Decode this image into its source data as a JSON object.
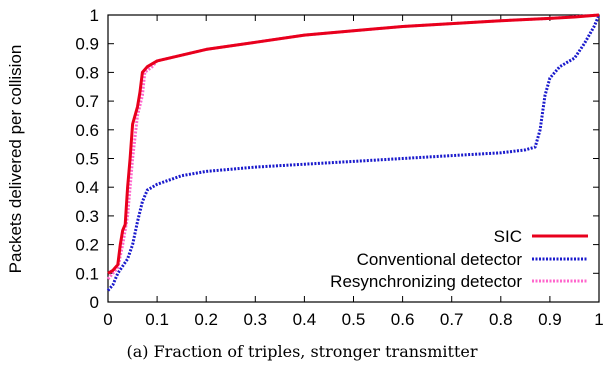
{
  "caption": "(a) Fraction of triples, stronger transmitter",
  "chart_data": {
    "type": "line",
    "title": "",
    "xlabel": "",
    "ylabel": "Packets delivered per collision",
    "xlim": [
      0,
      1
    ],
    "ylim": [
      0,
      1
    ],
    "x_ticks": [
      "0",
      "0.1",
      "0.2",
      "0.3",
      "0.4",
      "0.5",
      "0.6",
      "0.7",
      "0.8",
      "0.9",
      "1"
    ],
    "y_ticks": [
      "0",
      "0.1",
      "0.2",
      "0.3",
      "0.4",
      "0.5",
      "0.6",
      "0.7",
      "0.8",
      "0.9",
      "1"
    ],
    "grid": false,
    "legend_position": "bottom-right",
    "series": [
      {
        "name": "SIC",
        "color": "#e8001c",
        "style": "solid",
        "points": [
          [
            0,
            0.1
          ],
          [
            0.01,
            0.11
          ],
          [
            0.02,
            0.13
          ],
          [
            0.025,
            0.2
          ],
          [
            0.03,
            0.25
          ],
          [
            0.035,
            0.27
          ],
          [
            0.04,
            0.4
          ],
          [
            0.045,
            0.5
          ],
          [
            0.05,
            0.62
          ],
          [
            0.06,
            0.68
          ],
          [
            0.065,
            0.73
          ],
          [
            0.07,
            0.8
          ],
          [
            0.08,
            0.82
          ],
          [
            0.1,
            0.84
          ],
          [
            0.15,
            0.86
          ],
          [
            0.2,
            0.88
          ],
          [
            0.3,
            0.905
          ],
          [
            0.4,
            0.93
          ],
          [
            0.5,
            0.945
          ],
          [
            0.6,
            0.96
          ],
          [
            0.7,
            0.97
          ],
          [
            0.8,
            0.98
          ],
          [
            0.9,
            0.988
          ],
          [
            0.95,
            0.993
          ],
          [
            1,
            1
          ]
        ]
      },
      {
        "name": "Conventional detector",
        "color": "#1a1acc",
        "style": "dotted",
        "points": [
          [
            0,
            0.04
          ],
          [
            0.01,
            0.06
          ],
          [
            0.02,
            0.1
          ],
          [
            0.04,
            0.15
          ],
          [
            0.05,
            0.2
          ],
          [
            0.06,
            0.28
          ],
          [
            0.07,
            0.35
          ],
          [
            0.08,
            0.39
          ],
          [
            0.1,
            0.41
          ],
          [
            0.15,
            0.44
          ],
          [
            0.2,
            0.455
          ],
          [
            0.3,
            0.47
          ],
          [
            0.4,
            0.48
          ],
          [
            0.5,
            0.49
          ],
          [
            0.6,
            0.5
          ],
          [
            0.7,
            0.51
          ],
          [
            0.8,
            0.52
          ],
          [
            0.85,
            0.53
          ],
          [
            0.87,
            0.54
          ],
          [
            0.88,
            0.6
          ],
          [
            0.89,
            0.72
          ],
          [
            0.9,
            0.78
          ],
          [
            0.92,
            0.82
          ],
          [
            0.95,
            0.85
          ],
          [
            0.97,
            0.9
          ],
          [
            0.99,
            0.96
          ],
          [
            1,
            1
          ]
        ]
      },
      {
        "name": "Resynchronizing detector",
        "color": "#ff66cc",
        "style": "dotted",
        "points": [
          [
            0,
            0.08
          ],
          [
            0.01,
            0.1
          ],
          [
            0.02,
            0.12
          ],
          [
            0.03,
            0.2
          ],
          [
            0.04,
            0.3
          ],
          [
            0.05,
            0.5
          ],
          [
            0.06,
            0.65
          ],
          [
            0.07,
            0.72
          ],
          [
            0.075,
            0.8
          ],
          [
            0.09,
            0.82
          ],
          [
            0.1,
            0.84
          ],
          [
            0.15,
            0.86
          ],
          [
            0.2,
            0.88
          ],
          [
            0.3,
            0.905
          ],
          [
            0.4,
            0.93
          ],
          [
            0.5,
            0.945
          ],
          [
            0.6,
            0.96
          ],
          [
            0.7,
            0.97
          ],
          [
            0.8,
            0.98
          ],
          [
            0.9,
            0.988
          ],
          [
            1,
            1
          ]
        ]
      }
    ]
  }
}
